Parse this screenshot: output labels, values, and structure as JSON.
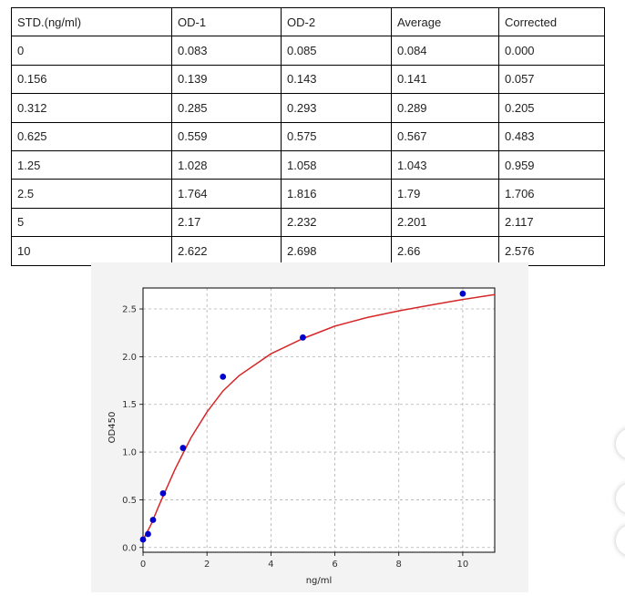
{
  "table": {
    "headers": [
      "STD.(ng/ml)",
      "OD-1",
      "OD-2",
      "Average",
      "Corrected"
    ],
    "rows": [
      [
        "0",
        "0.083",
        "0.085",
        "0.084",
        "0.000"
      ],
      [
        "0.156",
        "0.139",
        "0.143",
        "0.141",
        "0.057"
      ],
      [
        "0.312",
        "0.285",
        "0.293",
        "0.289",
        "0.205"
      ],
      [
        "0.625",
        "0.559",
        "0.575",
        "0.567",
        "0.483"
      ],
      [
        "1.25",
        "1.028",
        "1.058",
        "1.043",
        "0.959"
      ],
      [
        "2.5",
        "1.764",
        "1.816",
        "1.79",
        "1.706"
      ],
      [
        "5",
        "2.17",
        "2.232",
        "2.201",
        "2.117"
      ],
      [
        "10",
        "2.622",
        "2.698",
        "2.66",
        "2.576"
      ]
    ]
  },
  "chart_data": {
    "type": "scatter",
    "title": "",
    "xlabel": "ng/ml",
    "ylabel": "OD450",
    "xlim": [
      0,
      11
    ],
    "ylim": [
      -0.05,
      2.72
    ],
    "xticks": [
      "0",
      "2",
      "4",
      "6",
      "8",
      "10"
    ],
    "yticks": [
      "0.0",
      "0.5",
      "1.0",
      "1.5",
      "2.0",
      "2.5"
    ],
    "grid": true,
    "series": [
      {
        "kind": "points",
        "color": "#0000cc",
        "x": [
          0,
          0.156,
          0.312,
          0.625,
          1.25,
          2.5,
          5,
          10
        ],
        "y": [
          0.084,
          0.141,
          0.289,
          0.567,
          1.043,
          1.79,
          2.201,
          2.66
        ]
      },
      {
        "kind": "fitted-curve",
        "color": "#d62728",
        "x": [
          0,
          0.25,
          0.5,
          0.75,
          1,
          1.5,
          2,
          2.5,
          3,
          4,
          5,
          6,
          7,
          8,
          9,
          10,
          11
        ],
        "y": [
          0.08,
          0.24,
          0.44,
          0.63,
          0.82,
          1.15,
          1.42,
          1.64,
          1.8,
          2.03,
          2.19,
          2.32,
          2.41,
          2.48,
          2.54,
          2.6,
          2.65
        ]
      }
    ]
  }
}
